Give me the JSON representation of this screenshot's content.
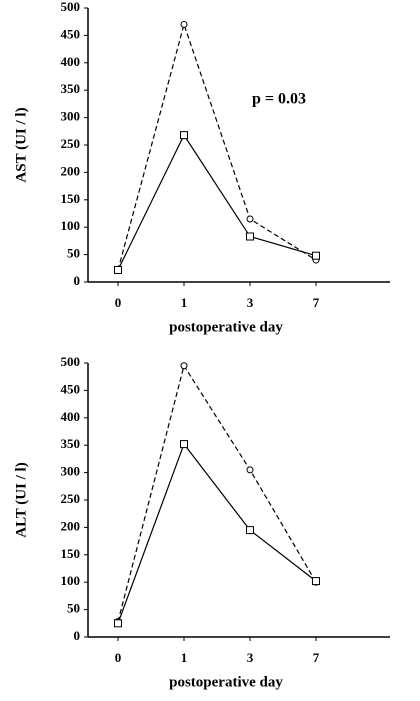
{
  "chart_data": [
    {
      "type": "line",
      "y_label": "AST  (UI / l)",
      "x_label": "postoperative day",
      "annotation": "p =  0.03",
      "categories": [
        "0",
        "1",
        "3",
        "7"
      ],
      "series": [
        {
          "color": "#000000",
          "line_style": "dashed",
          "marker": "circle",
          "values": [
            22,
            470,
            115,
            40
          ]
        },
        {
          "color": "#000000",
          "line_style": "solid",
          "marker": "square",
          "values": [
            22,
            268,
            83,
            48
          ]
        }
      ],
      "ylim": [
        0,
        500
      ],
      "yticks": [
        0,
        50,
        100,
        150,
        200,
        250,
        300,
        350,
        400,
        450,
        500
      ]
    },
    {
      "type": "line",
      "y_label": "ALT  (UI / l)",
      "x_label": "postoperative day",
      "categories": [
        "0",
        "1",
        "3",
        "7"
      ],
      "series": [
        {
          "color": "#000000",
          "line_style": "dashed",
          "marker": "circle",
          "values": [
            28,
            495,
            305,
            100
          ]
        },
        {
          "color": "#000000",
          "line_style": "solid",
          "marker": "square",
          "values": [
            25,
            352,
            195,
            102
          ]
        }
      ],
      "ylim": [
        0,
        500
      ],
      "yticks": [
        0,
        50,
        100,
        150,
        200,
        250,
        300,
        350,
        400,
        450,
        500
      ]
    }
  ]
}
